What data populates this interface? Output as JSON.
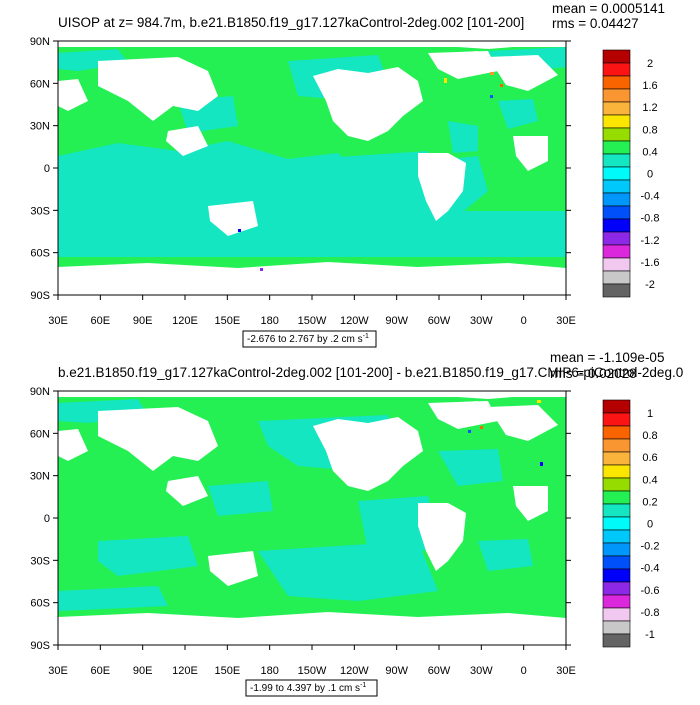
{
  "colors": {
    "land": "#ffffff",
    "ocean_dominant": "#24f054",
    "ocean_secondary": "#14e6c2",
    "outline": "#000000"
  },
  "chart_data": [
    {
      "type": "heatmap",
      "title": "UISOP at z= 984.7m, b.e21.B1850.f19_g17.127kaControl-2deg.002 [101-200]",
      "stats": {
        "mean": "mean = 0.0005141",
        "rms": "rms = 0.04427"
      },
      "ylabels": [
        "90N",
        "60N",
        "30N",
        "0",
        "30S",
        "60S",
        "90S"
      ],
      "xlabels": [
        "30E",
        "60E",
        "90E",
        "120E",
        "150E",
        "180",
        "150W",
        "120W",
        "90W",
        "60W",
        "30W",
        "0",
        "30E"
      ],
      "colorbar": {
        "labels": [
          "2",
          "1.6",
          "1.2",
          "0.8",
          "0.4",
          "0",
          "-0.4",
          "-0.8",
          "-1.2",
          "-1.6",
          "-2"
        ],
        "colors": [
          "#b40000",
          "#fa1414",
          "#fa6400",
          "#fa9632",
          "#fab43c",
          "#fae600",
          "#96dc00",
          "#24f054",
          "#14e6c2",
          "#00fafa",
          "#00c8fa",
          "#0096fa",
          "#0050fa",
          "#0000fa",
          "#8c28e6",
          "#dc28dc",
          "#f0c8f0",
          "#c8c8c8",
          "#646464"
        ]
      },
      "contour_info": "-2.676 to 2.767 by .2 cm s",
      "contour_unit_sup": "-1"
    },
    {
      "type": "heatmap",
      "title": "b.e21.B1850.f19_g17.127kaControl-2deg.002 [101-200] - b.e21.B1850.f19_g17.CMIP6-piControl-2deg.0",
      "stats": {
        "mean": "mean = -1.109e-05",
        "rms": "rms = 0.02028"
      },
      "ylabels": [
        "90N",
        "60N",
        "30N",
        "0",
        "30S",
        "60S",
        "90S"
      ],
      "xlabels": [
        "30E",
        "60E",
        "90E",
        "120E",
        "150E",
        "180",
        "150W",
        "120W",
        "90W",
        "60W",
        "30W",
        "0",
        "30E"
      ],
      "colorbar": {
        "labels": [
          "1",
          "0.8",
          "0.6",
          "0.4",
          "0.2",
          "0",
          "-0.2",
          "-0.4",
          "-0.6",
          "-0.8",
          "-1"
        ],
        "colors": [
          "#b40000",
          "#fa1414",
          "#fa6400",
          "#fa9632",
          "#fab43c",
          "#fae600",
          "#96dc00",
          "#24f054",
          "#14e6c2",
          "#00fafa",
          "#00c8fa",
          "#0096fa",
          "#0050fa",
          "#0000fa",
          "#8c28e6",
          "#dc28dc",
          "#f0c8f0",
          "#c8c8c8",
          "#646464"
        ]
      },
      "contour_info": "-1.99 to 4.397 by .1 cm s",
      "contour_unit_sup": "-1"
    }
  ]
}
